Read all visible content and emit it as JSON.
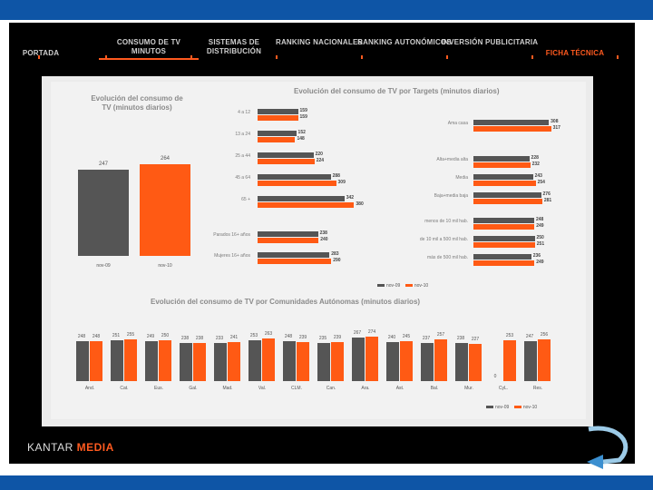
{
  "nav": {
    "items": [
      {
        "label": "PORTADA"
      },
      {
        "label": "CONSUMO DE TV MINUTOS"
      },
      {
        "label": "SISTEMAS DE DISTRIBUCIÓN"
      },
      {
        "label": "RANKING NACIONALES"
      },
      {
        "label": "RANKING AUTONÓMICOS"
      },
      {
        "label": "INVERSIÓN PUBLICITARIA"
      },
      {
        "label": "FICHA TÉCNICA"
      }
    ]
  },
  "colors": {
    "dark": "#555555",
    "orange": "#ff5a14",
    "accent": "#ff5a1f",
    "blue": "#0e55a6"
  },
  "logo": {
    "part1": "KANTAR ",
    "part2": "MEDIA"
  },
  "chart_data": [
    {
      "type": "bar",
      "title": "Evolución del consumo de TV (minutos diarios)",
      "categories": [
        "nov-09",
        "nov-10"
      ],
      "values": [
        247,
        264
      ],
      "ylim": [
        0,
        300
      ]
    },
    {
      "type": "bar",
      "orientation": "horizontal",
      "title": "Evolución del consumo de TV por Targets (minutos diarios)",
      "legend": [
        "nov-09",
        "nov-10"
      ],
      "groups": [
        {
          "categories": [
            "4 a 12",
            "13 a 24",
            "25 a 44",
            "45 a 64",
            "65 +"
          ],
          "series": [
            {
              "name": "nov-09",
              "values": [
                159,
                152,
                220,
                288,
                342
              ]
            },
            {
              "name": "nov-10",
              "values": [
                159,
                148,
                224,
                309,
                380
              ]
            }
          ]
        },
        {
          "categories": [
            "Parados 16+ años",
            "Mujeres 16+ años"
          ],
          "series": [
            {
              "name": "nov-09",
              "values": [
                238,
                283
              ]
            },
            {
              "name": "nov-10",
              "values": [
                240,
                290
              ]
            }
          ]
        },
        {
          "categories": [
            "Ama casa"
          ],
          "series": [
            {
              "name": "nov-09",
              "values": [
                308
              ]
            },
            {
              "name": "nov-10",
              "values": [
                317
              ]
            }
          ]
        },
        {
          "categories": [
            "Alta+media alta",
            "Media",
            "Baja+media baja"
          ],
          "series": [
            {
              "name": "nov-09",
              "values": [
                228,
                243,
                276
              ]
            },
            {
              "name": "nov-10",
              "values": [
                232,
                254,
                281
              ]
            }
          ]
        },
        {
          "categories": [
            "menos de 10 mil hab.",
            "de 10 mil a 500 mil hab.",
            "más de 500 mil hab."
          ],
          "series": [
            {
              "name": "nov-09",
              "values": [
                248,
                250,
                236
              ]
            },
            {
              "name": "nov-10",
              "values": [
                249,
                251,
                249
              ]
            }
          ]
        }
      ]
    },
    {
      "type": "bar",
      "title": "Evolución del consumo de TV por Comunidades Autónomas (minutos diarios)",
      "categories": [
        "And.",
        "Cat.",
        "Eus.",
        "Gal.",
        "Mad.",
        "Val.",
        "CLM.",
        "Can.",
        "Ara.",
        "Ast.",
        "Bal.",
        "Mur.",
        "CyL.",
        "Res."
      ],
      "legend": [
        "nov-09",
        "nov-10"
      ],
      "series": [
        {
          "name": "nov-09",
          "values": [
            248,
            251,
            249,
            238,
            233,
            253,
            248,
            235,
            267,
            240,
            237,
            238,
            0,
            247
          ]
        },
        {
          "name": "nov-10",
          "values": [
            248,
            255,
            250,
            238,
            241,
            263,
            239,
            239,
            274,
            245,
            257,
            227,
            253,
            256
          ]
        }
      ]
    }
  ]
}
